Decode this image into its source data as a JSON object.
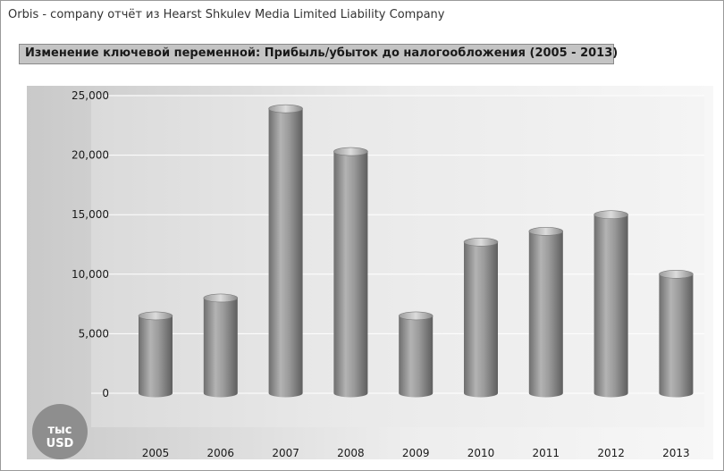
{
  "header": "Orbis - company отчёт из Hearst Shkulev Media Limited Liability Company",
  "chart_data": {
    "type": "bar",
    "title": "Изменение ключевой переменной: Прибыль/убыток до налогообложения (2005 - 2013)",
    "unit_label": "тыс USD",
    "categories": [
      "2005",
      "2006",
      "2007",
      "2008",
      "2009",
      "2010",
      "2011",
      "2012",
      "2013"
    ],
    "values": [
      6500,
      8000,
      23900,
      20300,
      6500,
      12700,
      13600,
      15000,
      10000
    ],
    "ylim": [
      0,
      25000
    ],
    "yticks": [
      0,
      5000,
      10000,
      15000,
      20000,
      25000
    ],
    "ytick_labels": [
      "0",
      "5,000",
      "10,000",
      "15,000",
      "20,000",
      "25,000"
    ],
    "grid": true,
    "bar_style": "3d-cylinder",
    "bar_color": "#8c8c8c"
  }
}
